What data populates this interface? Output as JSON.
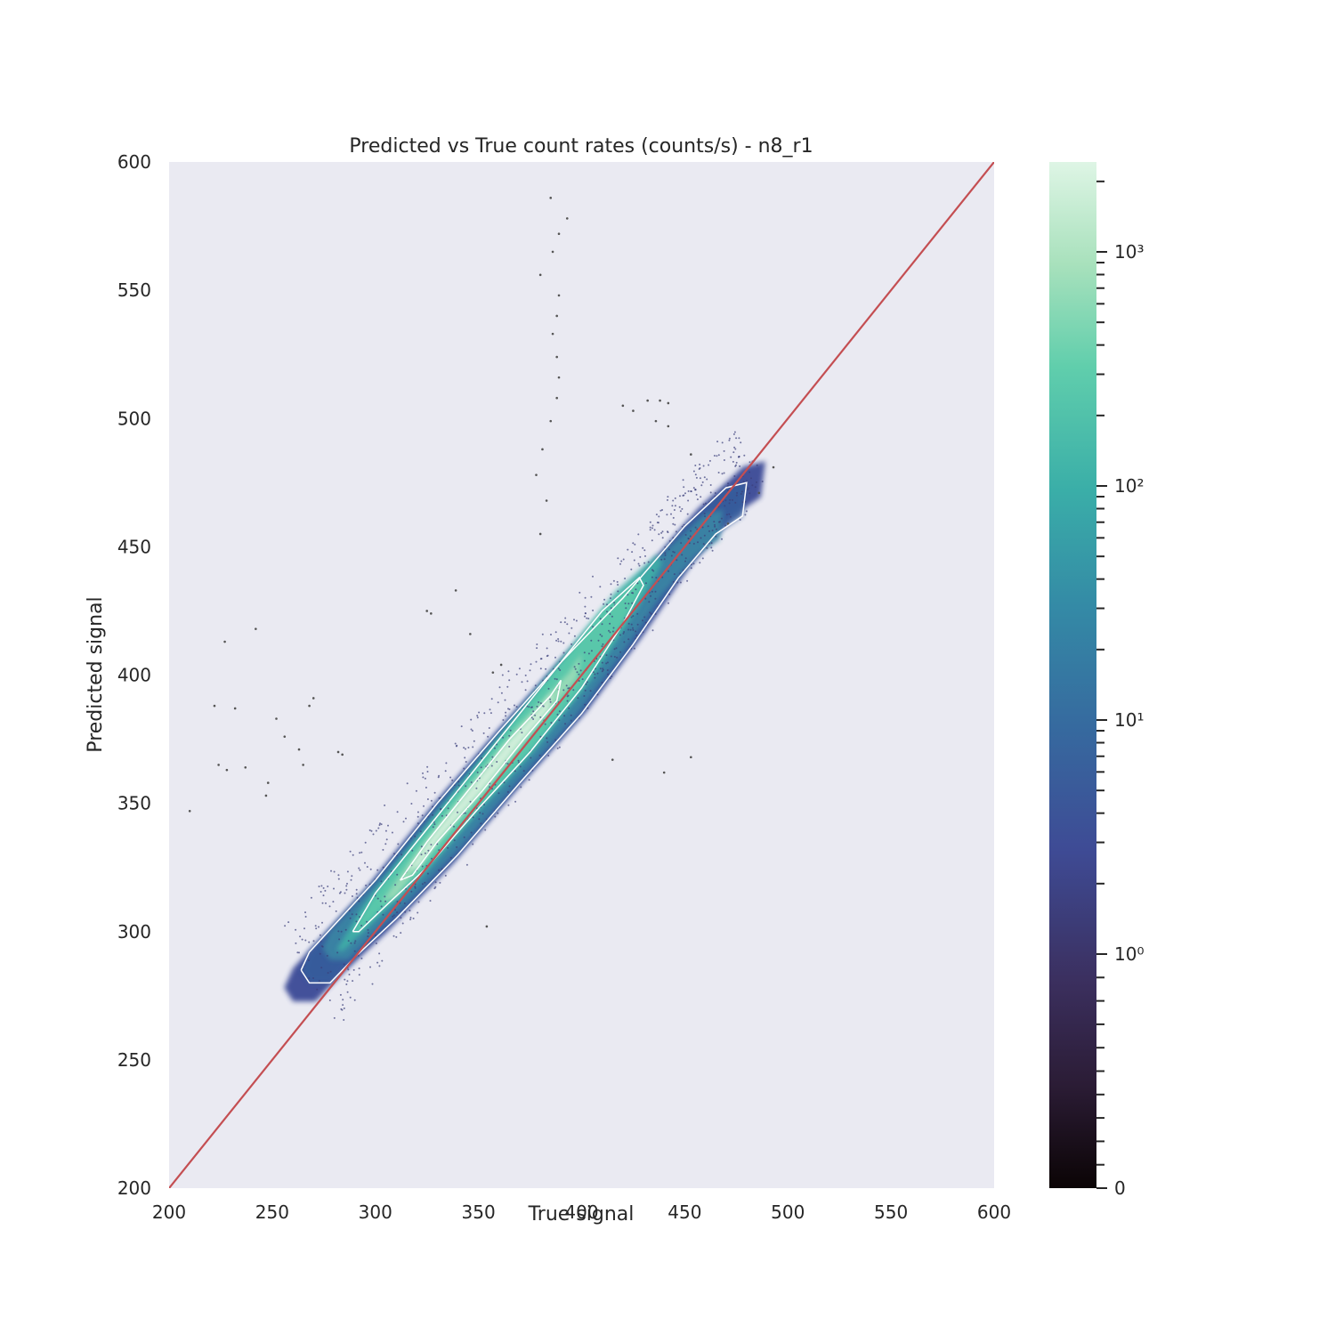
{
  "chart_data": {
    "type": "heatmap",
    "title": "Predicted vs True count rates (counts/s) - n8_r1",
    "xlabel": "True signal",
    "ylabel": "Predicted signal",
    "xlim": [
      200,
      600
    ],
    "ylim": [
      200,
      600
    ],
    "xticks": [
      200,
      250,
      300,
      350,
      400,
      450,
      500,
      550,
      600
    ],
    "yticks": [
      200,
      250,
      300,
      350,
      400,
      450,
      500,
      550,
      600
    ],
    "density": {
      "description": "2D histogram of predicted vs true signal, log color scale",
      "ridge_start": [
        268,
        283
      ],
      "ridge_end": [
        478,
        478
      ],
      "peak": [
        330,
        335
      ]
    },
    "identity_line": {
      "from": [
        200,
        200
      ],
      "to": [
        600,
        600
      ],
      "color": "#c44e52"
    },
    "contours": [
      {
        "name": "outer",
        "points": [
          [
            264,
            285
          ],
          [
            268,
            292
          ],
          [
            300,
            320
          ],
          [
            330,
            350
          ],
          [
            360,
            378
          ],
          [
            390,
            405
          ],
          [
            420,
            430
          ],
          [
            450,
            458
          ],
          [
            470,
            473
          ],
          [
            480,
            475
          ],
          [
            478,
            462
          ],
          [
            465,
            455
          ],
          [
            447,
            438
          ],
          [
            425,
            412
          ],
          [
            400,
            385
          ],
          [
            370,
            358
          ],
          [
            340,
            330
          ],
          [
            310,
            305
          ],
          [
            290,
            290
          ],
          [
            278,
            280
          ],
          [
            268,
            280
          ],
          [
            264,
            285
          ]
        ]
      },
      {
        "name": "middle",
        "points": [
          [
            289,
            300
          ],
          [
            300,
            315
          ],
          [
            325,
            340
          ],
          [
            355,
            370
          ],
          [
            385,
            400
          ],
          [
            410,
            425
          ],
          [
            428,
            438
          ],
          [
            430,
            435
          ],
          [
            420,
            420
          ],
          [
            400,
            395
          ],
          [
            375,
            370
          ],
          [
            350,
            348
          ],
          [
            325,
            325
          ],
          [
            305,
            310
          ],
          [
            292,
            300
          ],
          [
            289,
            300
          ]
        ]
      },
      {
        "name": "inner",
        "points": [
          [
            312,
            320
          ],
          [
            325,
            335
          ],
          [
            345,
            355
          ],
          [
            365,
            375
          ],
          [
            385,
            392
          ],
          [
            390,
            398
          ],
          [
            388,
            390
          ],
          [
            372,
            375
          ],
          [
            352,
            355
          ],
          [
            330,
            335
          ],
          [
            318,
            322
          ],
          [
            312,
            320
          ]
        ]
      }
    ],
    "outliers": [
      [
        385,
        586
      ],
      [
        393,
        578
      ],
      [
        389,
        572
      ],
      [
        386,
        565
      ],
      [
        380,
        556
      ],
      [
        389,
        548
      ],
      [
        388,
        540
      ],
      [
        386,
        533
      ],
      [
        388,
        524
      ],
      [
        389,
        516
      ],
      [
        388,
        508
      ],
      [
        385,
        499
      ],
      [
        381,
        488
      ],
      [
        378,
        478
      ],
      [
        383,
        468
      ],
      [
        380,
        455
      ],
      [
        210,
        347
      ],
      [
        227,
        413
      ],
      [
        242,
        418
      ],
      [
        222,
        388
      ],
      [
        232,
        387
      ],
      [
        224,
        365
      ],
      [
        228,
        363
      ],
      [
        237,
        364
      ],
      [
        247,
        353
      ],
      [
        248,
        358
      ],
      [
        252,
        383
      ],
      [
        256,
        376
      ],
      [
        263,
        371
      ],
      [
        265,
        365
      ],
      [
        268,
        388
      ],
      [
        270,
        391
      ],
      [
        282,
        370
      ],
      [
        284,
        369
      ],
      [
        325,
        425
      ],
      [
        327,
        424
      ],
      [
        339,
        433
      ],
      [
        346,
        416
      ],
      [
        357,
        401
      ],
      [
        361,
        404
      ],
      [
        432,
        507
      ],
      [
        438,
        507
      ],
      [
        442,
        506
      ],
      [
        420,
        505
      ],
      [
        425,
        503
      ],
      [
        436,
        499
      ],
      [
        442,
        497
      ],
      [
        453,
        486
      ],
      [
        493,
        481
      ],
      [
        486,
        471
      ],
      [
        471,
        459
      ],
      [
        453,
        368
      ],
      [
        440,
        362
      ],
      [
        415,
        367
      ],
      [
        354,
        302
      ]
    ],
    "colorbar": {
      "scale": "symlog",
      "colormap": "mako",
      "tick_labels": [
        "0",
        "10⁰",
        "10¹",
        "10²",
        "10³"
      ],
      "tick_values": [
        0,
        1,
        10,
        100,
        1000
      ],
      "max": 5000
    }
  }
}
